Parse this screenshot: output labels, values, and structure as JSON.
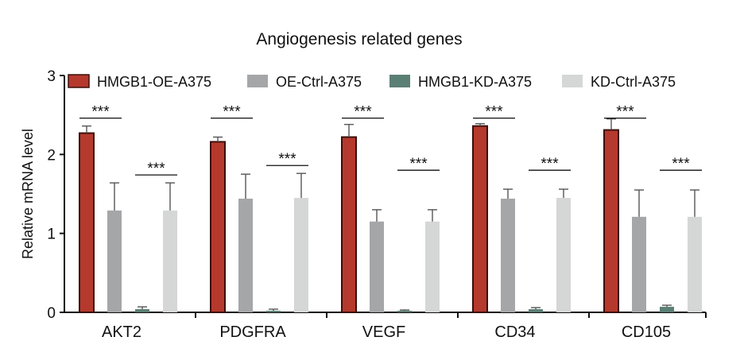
{
  "chart_data": {
    "type": "bar",
    "title": "Angiogenesis related genes",
    "xlabel": "",
    "ylabel": "Relative mRNA level",
    "ylim": [
      0,
      3
    ],
    "yticks": [
      "0",
      "1",
      "2",
      "3"
    ],
    "grid": false,
    "legend_position": "top",
    "categories": [
      "AKT2",
      "PDGFRA",
      "VEGF",
      "CD34",
      "CD105"
    ],
    "series": [
      {
        "name": "HMGB1-OE-A375",
        "color": "#b6392d",
        "stroke": "#3a0f0b",
        "values": [
          2.27,
          2.16,
          2.22,
          2.36,
          2.31
        ],
        "errors": [
          0.09,
          0.06,
          0.16,
          0.03,
          0.14
        ]
      },
      {
        "name": "OE-Ctrl-A375",
        "color": "#a4a6a8",
        "stroke": "#a4a6a8",
        "values": [
          1.29,
          1.44,
          1.15,
          1.44,
          1.21
        ],
        "errors": [
          0.35,
          0.31,
          0.15,
          0.12,
          0.34
        ]
      },
      {
        "name": "HMGB1-KD-A375",
        "color": "#5b7f74",
        "stroke": "#5b7f74",
        "values": [
          0.04,
          0.02,
          0.02,
          0.04,
          0.07
        ],
        "errors": [
          0.03,
          0.02,
          0.01,
          0.02,
          0.02
        ]
      },
      {
        "name": "KD-Ctrl-A375",
        "color": "#d5d6d6",
        "stroke": "#d5d6d6",
        "values": [
          1.29,
          1.45,
          1.15,
          1.45,
          1.21
        ],
        "errors": [
          0.35,
          0.31,
          0.15,
          0.11,
          0.34
        ]
      }
    ],
    "significance": {
      "label": "***",
      "comparisons": [
        {
          "category": "AKT2",
          "from_series": 0,
          "to_series": 1,
          "level": 2.46
        },
        {
          "category": "AKT2",
          "from_series": 2,
          "to_series": 3,
          "level": 1.74
        },
        {
          "category": "PDGFRA",
          "from_series": 0,
          "to_series": 1,
          "level": 2.46
        },
        {
          "category": "PDGFRA",
          "from_series": 2,
          "to_series": 3,
          "level": 1.86
        },
        {
          "category": "VEGF",
          "from_series": 0,
          "to_series": 1,
          "level": 2.46
        },
        {
          "category": "VEGF",
          "from_series": 2,
          "to_series": 3,
          "level": 1.8
        },
        {
          "category": "CD34",
          "from_series": 0,
          "to_series": 1,
          "level": 2.46
        },
        {
          "category": "CD34",
          "from_series": 2,
          "to_series": 3,
          "level": 1.8
        },
        {
          "category": "CD105",
          "from_series": 0,
          "to_series": 1,
          "level": 2.46
        },
        {
          "category": "CD105",
          "from_series": 2,
          "to_series": 3,
          "level": 1.8
        }
      ]
    }
  }
}
